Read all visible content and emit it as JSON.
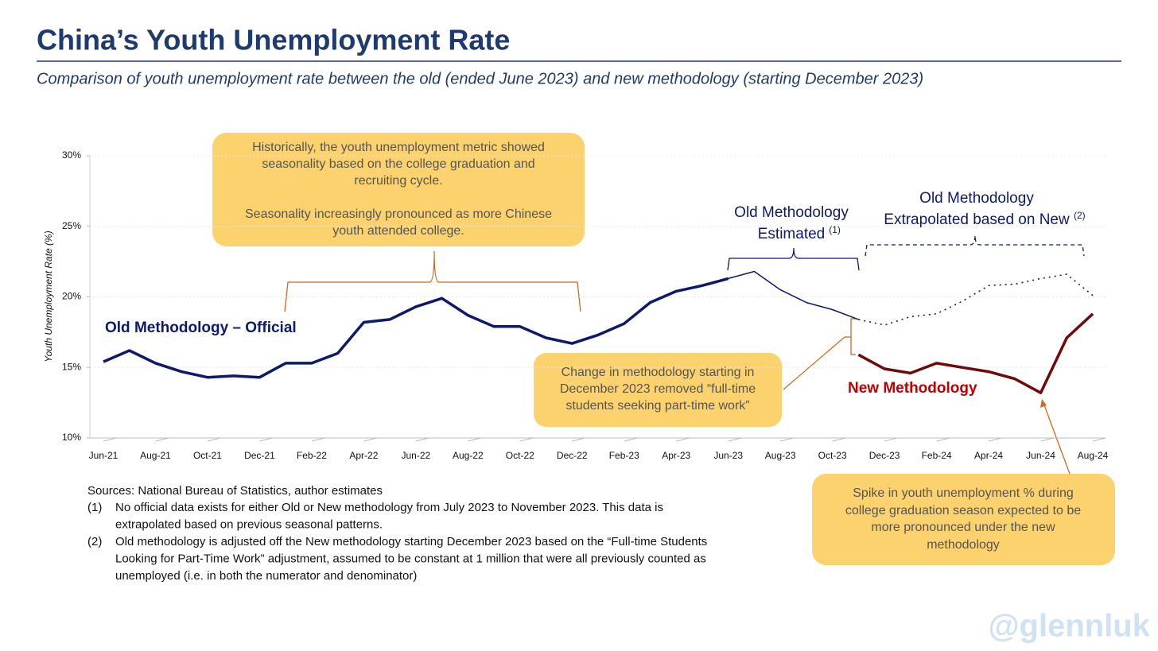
{
  "chart_data": {
    "type": "line",
    "title": "China’s Youth Unemployment Rate",
    "subtitle": "Comparison of youth unemployment rate between the old (ended June 2023) and new methodology (starting December 2023)",
    "y_label": "Youth Unemployment Rate (%)",
    "categories": [
      "Jun-21",
      null,
      "Aug-21",
      null,
      "Oct-21",
      null,
      "Dec-21",
      null,
      "Feb-22",
      null,
      "Apr-22",
      null,
      "Jun-22",
      null,
      "Aug-22",
      null,
      "Oct-22",
      null,
      "Dec-22",
      null,
      "Feb-23",
      null,
      "Apr-23",
      null,
      "Jun-23",
      null,
      "Aug-23",
      null,
      "Oct-23",
      null,
      "Dec-23",
      null,
      "Feb-24",
      null,
      "Apr-24",
      null,
      "Jun-24",
      null,
      "Aug-24"
    ],
    "ylim": [
      10,
      30
    ],
    "yticks": [
      {
        "value": 10,
        "label": "10%"
      },
      {
        "value": 15,
        "label": "15%"
      },
      {
        "value": 20,
        "label": "20%"
      },
      {
        "value": 25,
        "label": "25%"
      },
      {
        "value": 30,
        "label": "30%"
      }
    ],
    "grid": true,
    "series": [
      {
        "name": "Old Methodology – Official",
        "color": "#0c1a6e",
        "style": "solid",
        "width": 3.5,
        "values": [
          15.4,
          16.2,
          15.3,
          14.7,
          14.3,
          14.4,
          14.3,
          15.3,
          15.3,
          16.0,
          18.2,
          18.4,
          19.3,
          19.9,
          18.7,
          17.9,
          17.9,
          17.1,
          16.7,
          17.3,
          18.1,
          19.6,
          20.4,
          20.8,
          21.3,
          null,
          null,
          null,
          null,
          null,
          null,
          null,
          null,
          null,
          null,
          null,
          null,
          null,
          null
        ]
      },
      {
        "name": "Old Methodology Estimated",
        "note": "(1)",
        "color": "#0c1a6e",
        "style": "solid",
        "width": 1.5,
        "values": [
          null,
          null,
          null,
          null,
          null,
          null,
          null,
          null,
          null,
          null,
          null,
          null,
          null,
          null,
          null,
          null,
          null,
          null,
          null,
          null,
          null,
          null,
          null,
          null,
          21.3,
          21.8,
          20.5,
          19.6,
          19.1,
          18.4,
          null,
          null,
          null,
          null,
          null,
          null,
          null,
          null,
          null
        ]
      },
      {
        "name": "Old Methodology Extrapolated based on New",
        "note": "(2)",
        "color": "#0c1a6e",
        "style": "dotted",
        "width": 1.6,
        "values": [
          null,
          null,
          null,
          null,
          null,
          null,
          null,
          null,
          null,
          null,
          null,
          null,
          null,
          null,
          null,
          null,
          null,
          null,
          null,
          null,
          null,
          null,
          null,
          null,
          null,
          null,
          null,
          null,
          null,
          18.4,
          18.0,
          18.6,
          18.8,
          19.7,
          20.8,
          20.9,
          21.3,
          21.6,
          20.1
        ]
      },
      {
        "name": "New Methodology",
        "color": "#6e0a0a",
        "label_color": "#c00000",
        "style": "solid",
        "width": 3.5,
        "values": [
          null,
          null,
          null,
          null,
          null,
          null,
          null,
          null,
          null,
          null,
          null,
          null,
          null,
          null,
          null,
          null,
          null,
          null,
          null,
          null,
          null,
          null,
          null,
          null,
          null,
          null,
          null,
          null,
          null,
          15.9,
          14.9,
          14.6,
          15.3,
          15.0,
          14.7,
          14.2,
          13.2,
          17.1,
          18.8
        ]
      }
    ],
    "callouts": [
      {
        "lines": [
          "Historically, the youth unemployment metric showed",
          "seasonality based on the college graduation and",
          "recruiting cycle.",
          "Seasonality increasingly pronounced as more Chinese",
          "youth attended college."
        ]
      },
      {
        "lines": [
          "Change in methodology starting in",
          "December 2023 removed “full-time",
          "students seeking part-time work”"
        ]
      },
      {
        "lines": [
          "Spike in youth unemployment % during",
          "college graduation season expected to be",
          "more pronounced under the new",
          "methodology"
        ]
      }
    ],
    "sources": "Sources: National Bureau of Statistics, author estimates",
    "footnotes": [
      {
        "marker": "(1)",
        "lines": [
          "No official data exists for either Old or New methodology from July 2023 to November 2023.  This data is",
          "extrapolated based on previous seasonal patterns."
        ]
      },
      {
        "marker": "(2)",
        "lines": [
          "Old methodology is adjusted off the New methodology starting December 2023 based on the “Full-time Students",
          "Looking for Part-Time Work” adjustment, assumed to be constant at 1 million that were all previously counted as",
          "unemployed (i.e. in both the numerator and denominator)"
        ]
      }
    ],
    "watermark": "@glennluk"
  }
}
